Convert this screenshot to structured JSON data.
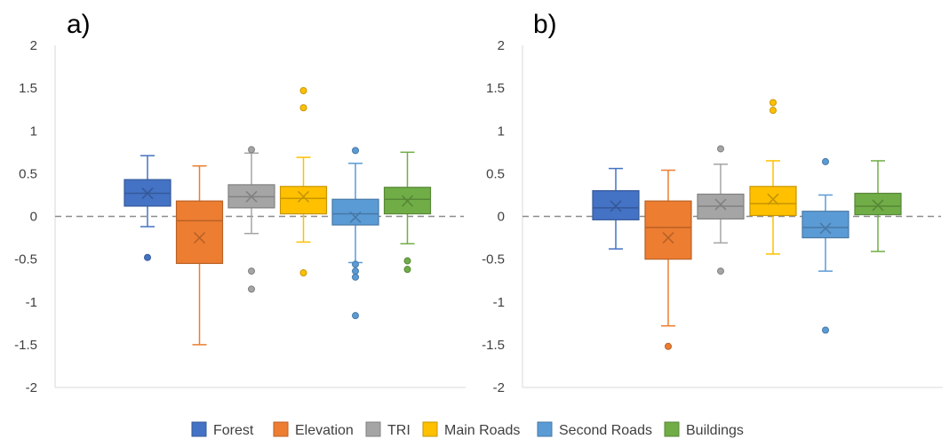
{
  "figure": {
    "legend": [
      {
        "label": "Forest",
        "color": "#4472C4"
      },
      {
        "label": "Elevation",
        "color": "#ED7D31"
      },
      {
        "label": "TRI",
        "color": "#A5A5A5"
      },
      {
        "label": "Main Roads",
        "color": "#FFC000"
      },
      {
        "label": "Second Roads",
        "color": "#5B9BD5"
      },
      {
        "label": "Buildings",
        "color": "#70AD47"
      }
    ]
  },
  "chart_data": [
    {
      "type": "box",
      "panel_label": "a)",
      "ylim": [
        -2,
        2
      ],
      "yticks": [
        "2",
        "1.5",
        "1",
        "0.5",
        "0",
        "-0.5",
        "-1",
        "-1.5",
        "-2"
      ],
      "reference_line": 0,
      "series": [
        {
          "name": "Forest",
          "color": "#4472C4",
          "whisker_low": -0.12,
          "q1": 0.12,
          "median": 0.27,
          "q3": 0.43,
          "whisker_high": 0.71,
          "mean": 0.27,
          "outliers": [
            -0.48
          ]
        },
        {
          "name": "Elevation",
          "color": "#ED7D31",
          "whisker_low": -1.5,
          "q1": -0.55,
          "median": -0.05,
          "q3": 0.18,
          "whisker_high": 0.59,
          "mean": -0.25,
          "outliers": []
        },
        {
          "name": "TRI",
          "color": "#A5A5A5",
          "whisker_low": -0.2,
          "q1": 0.1,
          "median": 0.23,
          "q3": 0.37,
          "whisker_high": 0.74,
          "mean": 0.23,
          "outliers": [
            0.78,
            -0.64,
            -0.85
          ]
        },
        {
          "name": "Main Roads",
          "color": "#FFC000",
          "whisker_low": -0.3,
          "q1": 0.03,
          "median": 0.21,
          "q3": 0.35,
          "whisker_high": 0.69,
          "mean": 0.23,
          "outliers": [
            1.47,
            1.27,
            -0.66
          ]
        },
        {
          "name": "Second Roads",
          "color": "#5B9BD5",
          "whisker_low": -0.54,
          "q1": -0.1,
          "median": 0.03,
          "q3": 0.2,
          "whisker_high": 0.62,
          "mean": -0.01,
          "outliers": [
            0.77,
            -0.56,
            -0.64,
            -0.71,
            -1.16
          ]
        },
        {
          "name": "Buildings",
          "color": "#70AD47",
          "whisker_low": -0.32,
          "q1": 0.03,
          "median": 0.2,
          "q3": 0.34,
          "whisker_high": 0.75,
          "mean": 0.18,
          "outliers": [
            -0.52,
            -0.62
          ]
        }
      ]
    },
    {
      "type": "box",
      "panel_label": "b)",
      "ylim": [
        -2,
        2
      ],
      "yticks": [
        "2",
        "1.5",
        "1",
        "0.5",
        "0",
        "-0.5",
        "-1",
        "-1.5",
        "-2"
      ],
      "reference_line": 0,
      "series": [
        {
          "name": "Forest",
          "color": "#4472C4",
          "whisker_low": -0.38,
          "q1": -0.04,
          "median": 0.1,
          "q3": 0.3,
          "whisker_high": 0.56,
          "mean": 0.12,
          "outliers": []
        },
        {
          "name": "Elevation",
          "color": "#ED7D31",
          "whisker_low": -1.28,
          "q1": -0.5,
          "median": -0.13,
          "q3": 0.18,
          "whisker_high": 0.54,
          "mean": -0.25,
          "outliers": [
            -1.52
          ]
        },
        {
          "name": "TRI",
          "color": "#A5A5A5",
          "whisker_low": -0.31,
          "q1": -0.03,
          "median": 0.12,
          "q3": 0.26,
          "whisker_high": 0.61,
          "mean": 0.14,
          "outliers": [
            0.79,
            -0.64
          ]
        },
        {
          "name": "Main Roads",
          "color": "#FFC000",
          "whisker_low": -0.44,
          "q1": 0.01,
          "median": 0.15,
          "q3": 0.35,
          "whisker_high": 0.65,
          "mean": 0.2,
          "outliers": [
            1.33,
            1.24
          ]
        },
        {
          "name": "Second Roads",
          "color": "#5B9BD5",
          "whisker_low": -0.64,
          "q1": -0.25,
          "median": -0.13,
          "q3": 0.06,
          "whisker_high": 0.25,
          "mean": -0.14,
          "outliers": [
            0.64,
            -1.33
          ]
        },
        {
          "name": "Buildings",
          "color": "#70AD47",
          "whisker_low": -0.41,
          "q1": 0.02,
          "median": 0.12,
          "q3": 0.27,
          "whisker_high": 0.65,
          "mean": 0.13,
          "outliers": []
        }
      ]
    }
  ]
}
